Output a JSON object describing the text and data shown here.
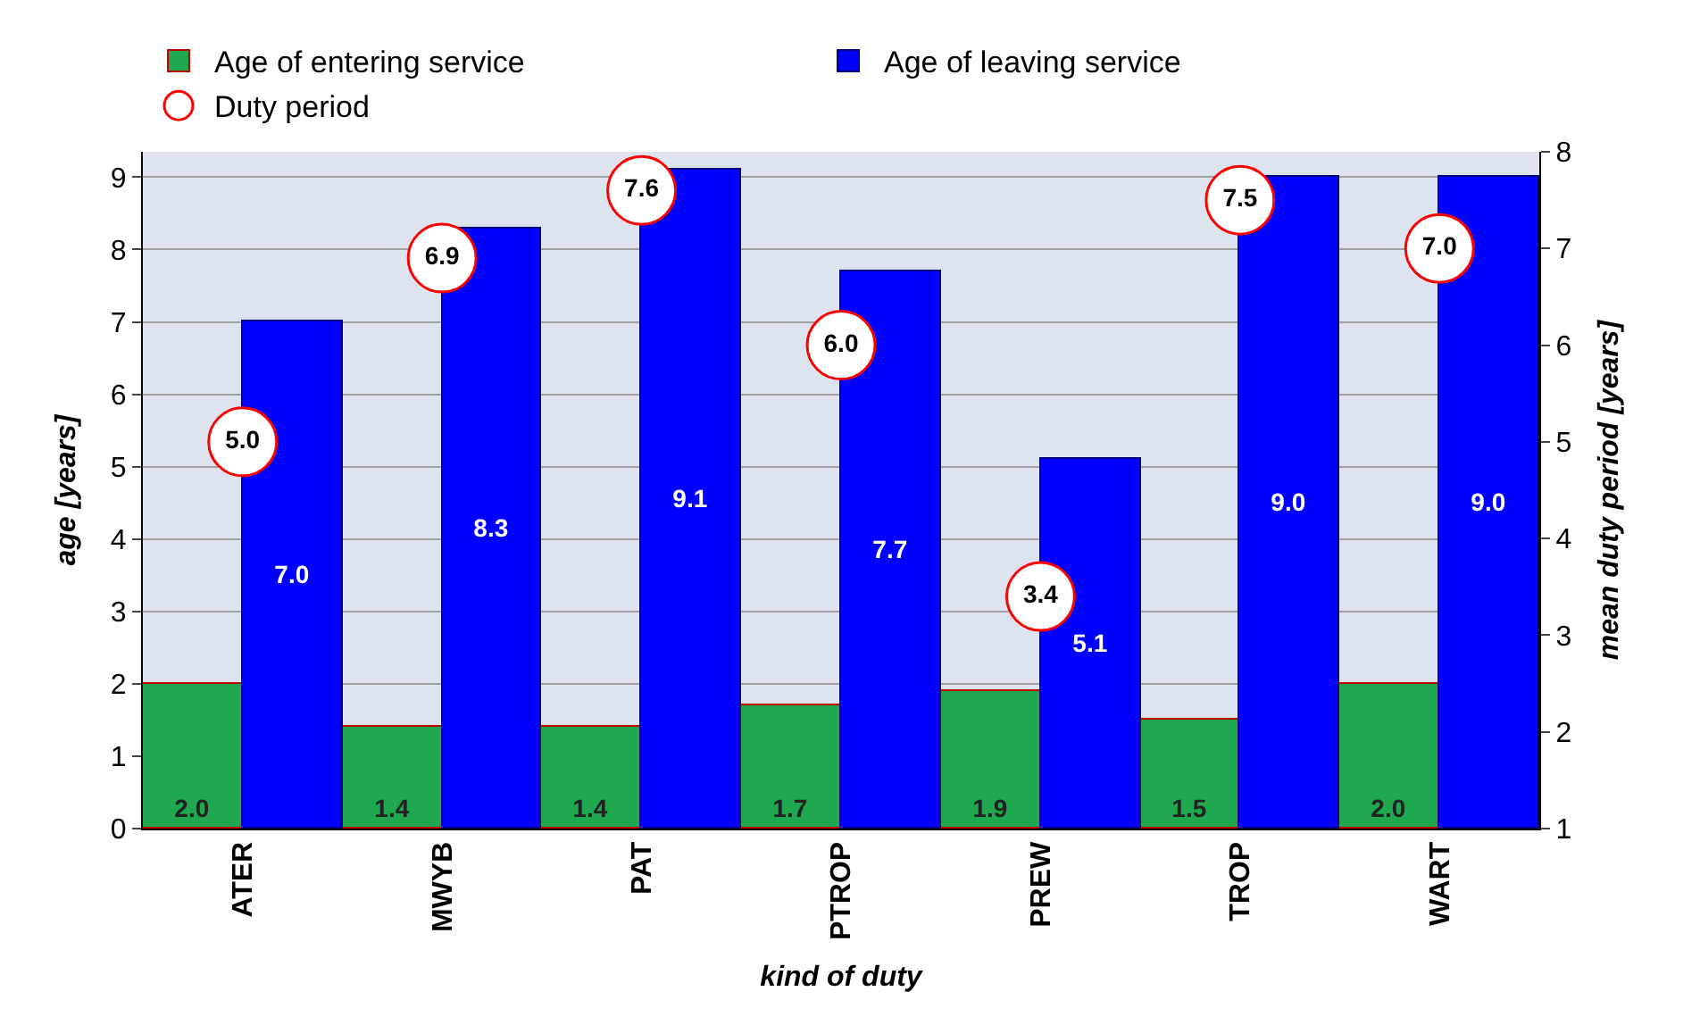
{
  "chart_data": {
    "type": "bar",
    "categories": [
      "ATER",
      "MWYB",
      "PAT",
      "PTROP",
      "PREW",
      "TROP",
      "WART"
    ],
    "series": [
      {
        "name": "Age of entering service",
        "color": "#1fa84f",
        "values": [
          2.0,
          1.4,
          1.4,
          1.7,
          1.9,
          1.5,
          2.0
        ],
        "value_labels": [
          "2.0",
          "1.4",
          "1.4",
          "1.7",
          "1.9",
          "1.5",
          "2.0"
        ]
      },
      {
        "name": "Age of leaving service",
        "color": "#0000ff",
        "values": [
          7.0,
          8.3,
          9.1,
          7.7,
          5.1,
          9.0,
          9.0
        ],
        "value_labels": [
          "7.0",
          "8.3",
          "9.1",
          "7.7",
          "5.1",
          "9.0",
          "9.0"
        ]
      },
      {
        "name": "Duty period",
        "type": "scatter",
        "axis": "y2",
        "color": "#ff0000",
        "values": [
          5.0,
          6.9,
          7.6,
          6.0,
          3.4,
          7.5,
          7.0
        ],
        "value_labels": [
          "5.0",
          "6.9",
          "7.6",
          "6.0",
          "3.4",
          "7.5",
          "7.0"
        ]
      }
    ],
    "xlabel": "kind of duty",
    "ylabel": "age [years]",
    "y2label": "mean duty period [years]",
    "ylim": [
      0,
      9.35
    ],
    "yticks": [
      0,
      1,
      2,
      3,
      4,
      5,
      6,
      7,
      8,
      9
    ],
    "y2lim": [
      1,
      8
    ],
    "y2ticks": [
      1,
      2,
      3,
      4,
      5,
      6,
      7,
      8
    ],
    "grid": "y",
    "legend": "top left",
    "marker": "circle"
  }
}
